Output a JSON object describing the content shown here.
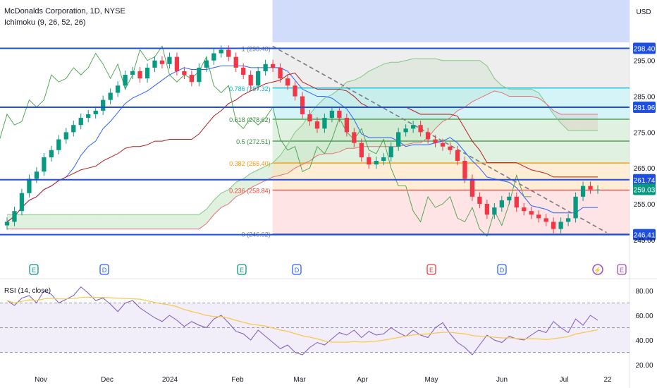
{
  "header": {
    "title": "McDonalds Corporation, 1D, NYSE",
    "indicator": "Ichimoku (9, 26, 52, 26)",
    "currency": "USD"
  },
  "rsi": {
    "label": "RSI (14, close)",
    "y_ticks": [
      "80.00",
      "60.00",
      "40.00",
      "20.00"
    ],
    "values": [
      72,
      68,
      74,
      76,
      70,
      80,
      77,
      70,
      73,
      76,
      83,
      78,
      72,
      74,
      69,
      63,
      70,
      72,
      66,
      62,
      58,
      55,
      60,
      56,
      51,
      55,
      52,
      50,
      57,
      60,
      54,
      47,
      45,
      40,
      48,
      43,
      38,
      33,
      36,
      30,
      28,
      34,
      38,
      36,
      41,
      46,
      44,
      48,
      42,
      47,
      44,
      45,
      50,
      46,
      43,
      48,
      44,
      42,
      50,
      54,
      45,
      38,
      34,
      28,
      36,
      44,
      40,
      38,
      43,
      41,
      40,
      44,
      48,
      46,
      55,
      50,
      46,
      57,
      52,
      60,
      56
    ]
  },
  "events": {
    "markers": [
      "E",
      "D",
      "E",
      "D",
      "E",
      "D",
      "⚡",
      "E"
    ]
  },
  "chart_data": {
    "type": "candlestick",
    "title": "McDonalds Corporation, 1D, NYSE",
    "indicator": "Ichimoku (9, 26, 52, 26)",
    "x_ticks": [
      "Nov",
      "Dec",
      "2024",
      "Feb",
      "Mar",
      "Apr",
      "May",
      "Jun",
      "Jul",
      "22"
    ],
    "y_ticks": [
      "295.00",
      "285.00",
      "275.00",
      "265.00",
      "255.00",
      "245.00"
    ],
    "ylim": [
      243,
      304
    ],
    "fibonacci": [
      {
        "label": "1 (298.40)",
        "value": 298.4
      },
      {
        "label": "0.786 (287.32)",
        "value": 287.32
      },
      {
        "label": "0.618 (278.62)",
        "value": 278.62
      },
      {
        "label": "0.5 (272.51)",
        "value": 272.51
      },
      {
        "label": "0.382 (266.40)",
        "value": 266.4
      },
      {
        "label": "0.236 (258.84)",
        "value": 258.84
      },
      {
        "label": "0 (246.62)",
        "value": 246.62
      }
    ],
    "horizontal_levels": [
      {
        "label": "298.40",
        "value": 298.4
      },
      {
        "label": "281.96",
        "value": 281.96
      },
      {
        "label": "261.74",
        "value": 261.74
      },
      {
        "label": "246.41",
        "value": 246.41
      }
    ],
    "last_price": {
      "label": "259.03",
      "value": 259.03
    },
    "closes": [
      250,
      253,
      258,
      262,
      264,
      268,
      270,
      273,
      275,
      277,
      279,
      280,
      281,
      284,
      286,
      288,
      291,
      292,
      290,
      293,
      295,
      294,
      296,
      292,
      291,
      289,
      293,
      295,
      297,
      298,
      296,
      293,
      291,
      288,
      292,
      294,
      293,
      290,
      288,
      285,
      280,
      278,
      276,
      279,
      281,
      279,
      275,
      272,
      268,
      266,
      267,
      268,
      271,
      275,
      276,
      277,
      275,
      273,
      272,
      271,
      270,
      267,
      262,
      257,
      255,
      252,
      254,
      256,
      257,
      254,
      253,
      252,
      251,
      250,
      248,
      250,
      251,
      257,
      260,
      259,
      259
    ],
    "dates_start": "2023-10-25",
    "dates_end": "2024-07-18",
    "trendline": [
      {
        "x": "2024-02-22",
        "y": 299
      },
      {
        "x": "2024-07-22",
        "y": 247
      }
    ]
  },
  "colors": {
    "up": "#089981",
    "down": "#f23645",
    "blue_line": "#1f4fe0",
    "tenkan": "#2962ff",
    "kijun": "#b71c1c",
    "lagging": "#43a047",
    "cloud_bull": "#a5d6a7",
    "cloud_bear": "#ef9a9a",
    "rsi_line": "#7e57c2",
    "rsi_ma": "#f9c74f"
  }
}
